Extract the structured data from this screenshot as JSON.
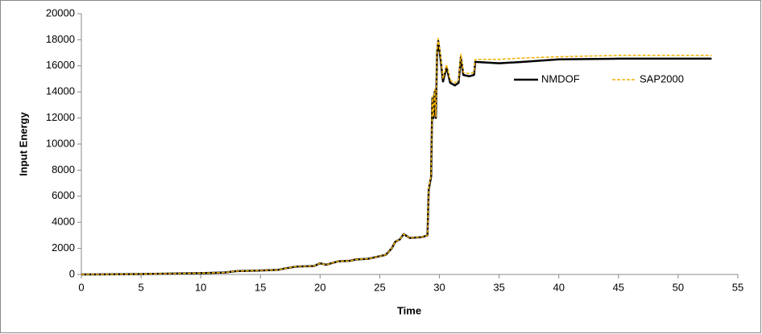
{
  "chart_data": {
    "type": "line",
    "x_label": "Time",
    "y_label": "Input Energy",
    "xlim": [
      0,
      55
    ],
    "xticks": [
      0,
      5,
      10,
      15,
      20,
      25,
      30,
      35,
      40,
      45,
      50,
      55
    ],
    "ylim": [
      0,
      20000
    ],
    "yticks": [
      0,
      2000,
      4000,
      6000,
      8000,
      10000,
      12000,
      14000,
      16000,
      18000,
      20000
    ],
    "grid": false,
    "legend": "right",
    "series": [
      {
        "name": "NMDOF",
        "color": "#000000",
        "x": [
          0,
          5,
          10,
          12,
          13,
          15,
          16.5,
          17,
          18,
          19.5,
          20,
          20.5,
          21.5,
          22.5,
          23,
          24,
          25,
          25.5,
          26,
          26.3,
          26.7,
          27,
          27.5,
          28.5,
          29,
          29.1,
          29.3,
          29.4,
          29.5,
          29.6,
          29.7,
          29.8,
          29.9,
          30.1,
          30.3,
          30.6,
          30.9,
          31.3,
          31.6,
          31.8,
          32,
          32.5,
          32.9,
          33,
          35,
          37,
          40,
          45,
          52.8
        ],
        "values": [
          0,
          30,
          100,
          150,
          250,
          300,
          350,
          450,
          600,
          650,
          850,
          750,
          1000,
          1050,
          1150,
          1200,
          1400,
          1500,
          2000,
          2500,
          2700,
          3100,
          2800,
          2850,
          3000,
          6500,
          7500,
          13500,
          12000,
          14000,
          12000,
          17000,
          17900,
          16500,
          14800,
          15900,
          14700,
          14500,
          14700,
          16700,
          15300,
          15200,
          15300,
          16300,
          16200,
          16300,
          16500,
          16550,
          16550
        ]
      },
      {
        "name": "SAP2000",
        "color": "#f2b200",
        "x": [
          0,
          5,
          10,
          12,
          13,
          15,
          16.5,
          17,
          18,
          19.5,
          20,
          20.5,
          21.5,
          22.5,
          23,
          24,
          25,
          25.5,
          26,
          26.3,
          26.7,
          27,
          27.5,
          28.5,
          29,
          29.1,
          29.3,
          29.4,
          29.5,
          29.6,
          29.7,
          29.8,
          29.9,
          30.1,
          30.3,
          30.6,
          30.9,
          31.3,
          31.6,
          31.8,
          32,
          32.5,
          32.9,
          33,
          35,
          37,
          40,
          45,
          52.8
        ],
        "values": [
          0,
          30,
          100,
          150,
          250,
          300,
          350,
          450,
          600,
          650,
          850,
          750,
          1000,
          1050,
          1150,
          1200,
          1400,
          1500,
          2000,
          2500,
          2700,
          3100,
          2800,
          2850,
          3000,
          6600,
          7600,
          13700,
          12100,
          14200,
          12100,
          17200,
          18100,
          16700,
          15000,
          16100,
          14900,
          14700,
          14900,
          16900,
          15500,
          15400,
          15500,
          16500,
          16500,
          16600,
          16700,
          16800,
          16800
        ]
      }
    ]
  }
}
